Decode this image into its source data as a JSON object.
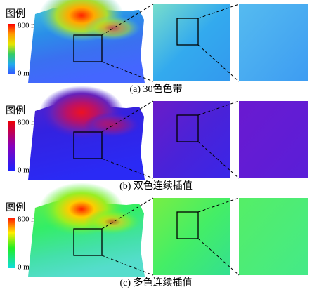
{
  "rows": [
    {
      "legend_title": "图例",
      "max_label": "800 m",
      "min_label": "0 m",
      "caption": "(a) 30色色带"
    },
    {
      "legend_title": "图例",
      "max_label": "800 m",
      "min_label": "0 m",
      "caption": "(b) 双色连续插值"
    },
    {
      "legend_title": "图例",
      "max_label": "800 m",
      "min_label": "0 m",
      "caption": "(c) 多色连续插值"
    }
  ]
}
